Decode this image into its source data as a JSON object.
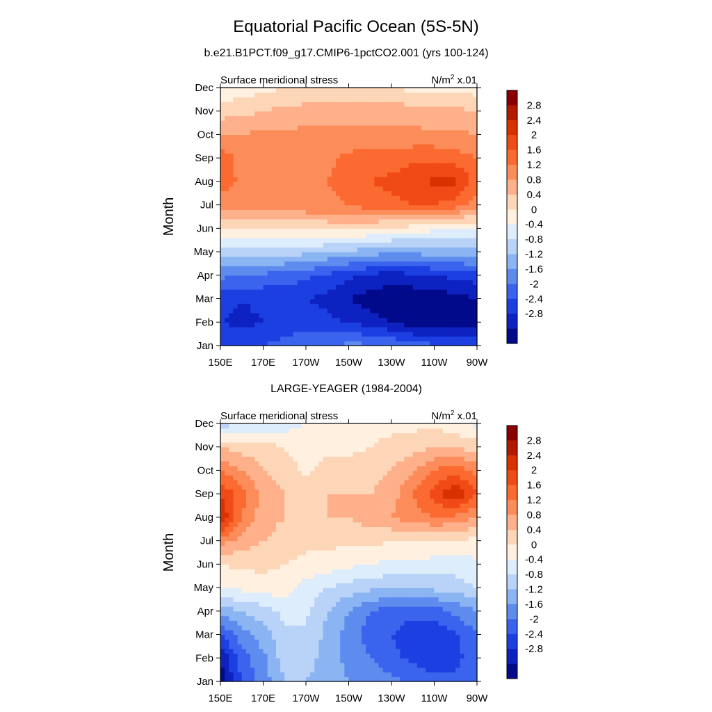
{
  "title": "Equatorial Pacific Ocean (5S-5N)",
  "colorbar": {
    "labels": [
      "2.8",
      "2.4",
      "2",
      "1.6",
      "1.2",
      "0.8",
      "0.4",
      "0",
      "-0.4",
      "-0.8",
      "-1.2",
      "-1.6",
      "-2",
      "-2.4",
      "-2.8"
    ],
    "colors": [
      "#8a0000",
      "#b31a00",
      "#d93100",
      "#f04b16",
      "#fb6a30",
      "#fc8c5a",
      "#fdb08a",
      "#fdd6b8",
      "#fff0e0",
      "#deedfb",
      "#b8d3f7",
      "#8ab4f2",
      "#5e8cee",
      "#3a64ee",
      "#1c3fe2",
      "#0d22c0",
      "#000a8a"
    ],
    "note": ""
  },
  "chart_data": [
    {
      "type": "heatmap",
      "subtitle": "b.e21.B1PCT.f09_g17.CMIP6-1pctCO2.001 (yrs 100-124)",
      "left_label": "Surface meridional stress",
      "right_label": "N/m",
      "right_label_sup": "2",
      "right_label_suffix": " x.01",
      "ylabel": "Month",
      "xlabel": "",
      "x_ticks": [
        "150E",
        "170E",
        "170W",
        "150W",
        "130W",
        "110W",
        "90W"
      ],
      "y_ticks": [
        "Jan",
        "Feb",
        "Mar",
        "Apr",
        "May",
        "Jun",
        "Jul",
        "Aug",
        "Sep",
        "Oct",
        "Nov",
        "Dec"
      ],
      "x_range": [
        150,
        270
      ],
      "y_range": [
        1,
        12
      ],
      "x_grid": [
        150,
        160,
        170,
        180,
        190,
        200,
        210,
        220,
        230,
        240,
        250,
        260,
        270
      ],
      "values": [
        [
          -2.0,
          -2.1,
          -2.0,
          -1.8,
          -1.7,
          -1.6,
          -1.5,
          -1.5,
          -1.6,
          -1.8,
          -1.9,
          -2.0,
          -2.1
        ],
        [
          -2.4,
          -2.5,
          -2.4,
          -2.3,
          -2.2,
          -2.3,
          -2.4,
          -2.6,
          -2.8,
          -3.0,
          -3.0,
          -3.0,
          -2.9
        ],
        [
          -2.2,
          -2.4,
          -2.3,
          -2.3,
          -2.4,
          -2.5,
          -2.8,
          -3.0,
          -3.1,
          -3.1,
          -3.0,
          -3.0,
          -2.8
        ],
        [
          -1.5,
          -1.6,
          -1.7,
          -1.8,
          -1.9,
          -2.1,
          -2.3,
          -2.5,
          -2.6,
          -2.5,
          -2.4,
          -2.3,
          -2.2
        ],
        [
          -0.5,
          -0.5,
          -0.6,
          -0.6,
          -0.7,
          -0.8,
          -0.9,
          -1.0,
          -1.1,
          -1.1,
          -1.0,
          -1.0,
          -0.9
        ],
        [
          0.3,
          0.4,
          0.4,
          0.5,
          0.5,
          0.5,
          0.5,
          0.4,
          0.3,
          0.2,
          0.1,
          0.0,
          0.0
        ],
        [
          1.3,
          1.4,
          1.4,
          1.4,
          1.5,
          1.5,
          1.6,
          1.8,
          1.9,
          2.0,
          2.0,
          1.8,
          1.3
        ],
        [
          1.9,
          1.5,
          1.4,
          1.4,
          1.5,
          1.6,
          1.8,
          2.0,
          2.1,
          2.3,
          2.5,
          2.5,
          1.8
        ],
        [
          1.9,
          1.4,
          1.3,
          1.3,
          1.4,
          1.5,
          1.7,
          1.8,
          1.8,
          1.9,
          1.9,
          1.8,
          1.6
        ],
        [
          1.2,
          1.2,
          1.3,
          1.3,
          1.3,
          1.3,
          1.3,
          1.3,
          1.3,
          1.3,
          1.3,
          1.3,
          1.2
        ],
        [
          0.6,
          0.7,
          0.8,
          0.9,
          1.0,
          1.0,
          1.0,
          1.0,
          1.0,
          1.0,
          0.9,
          0.9,
          0.8
        ],
        [
          0.0,
          0.2,
          0.3,
          0.4,
          0.4,
          0.4,
          0.4,
          0.4,
          0.4,
          0.3,
          0.3,
          0.3,
          0.2
        ]
      ]
    },
    {
      "type": "heatmap",
      "subtitle": "LARGE-YEAGER (1984-2004)",
      "left_label": "Surface meridional stress",
      "right_label": "N/m",
      "right_label_sup": "2",
      "right_label_suffix": " x.01",
      "ylabel": "Month",
      "xlabel": "",
      "x_ticks": [
        "150E",
        "170E",
        "170W",
        "150W",
        "130W",
        "110W",
        "90W"
      ],
      "y_ticks": [
        "Jan",
        "Feb",
        "Mar",
        "Apr",
        "May",
        "Jun",
        "Jul",
        "Aug",
        "Sep",
        "Oct",
        "Nov",
        "Dec"
      ],
      "x_range": [
        150,
        270
      ],
      "y_range": [
        1,
        12
      ],
      "x_grid": [
        150,
        160,
        170,
        180,
        190,
        200,
        210,
        220,
        230,
        240,
        250,
        260,
        270
      ],
      "values": [
        [
          -3.0,
          -2.0,
          -1.4,
          -0.8,
          -0.8,
          -1.0,
          -1.2,
          -1.3,
          -1.5,
          -1.7,
          -1.8,
          -1.9,
          -1.7
        ],
        [
          -2.8,
          -1.8,
          -1.3,
          -0.6,
          -0.6,
          -1.0,
          -1.3,
          -1.6,
          -1.9,
          -2.1,
          -2.3,
          -2.1,
          -1.8
        ],
        [
          -2.0,
          -1.4,
          -1.0,
          -0.5,
          -0.5,
          -0.9,
          -1.4,
          -1.8,
          -2.0,
          -2.2,
          -2.3,
          -2.1,
          -1.6
        ],
        [
          -1.0,
          -0.8,
          -0.6,
          -0.3,
          -0.3,
          -0.8,
          -1.2,
          -1.6,
          -1.8,
          -1.9,
          -1.8,
          -1.5,
          -1.2
        ],
        [
          0.0,
          0.1,
          0.2,
          0.2,
          -0.2,
          -0.4,
          -0.6,
          -0.7,
          -0.8,
          -0.8,
          -0.7,
          -0.6,
          -0.4
        ],
        [
          0.4,
          0.5,
          0.5,
          0.4,
          0.3,
          0.2,
          0.1,
          0.0,
          -0.1,
          -0.1,
          -0.2,
          -0.2,
          -0.1
        ],
        [
          1.4,
          1.0,
          0.8,
          0.6,
          0.5,
          0.5,
          0.5,
          0.5,
          0.4,
          0.4,
          0.4,
          0.3,
          0.3
        ],
        [
          2.8,
          1.6,
          1.0,
          0.8,
          0.6,
          0.8,
          0.8,
          1.0,
          1.2,
          1.4,
          1.6,
          1.5,
          1.2
        ],
        [
          2.4,
          1.8,
          1.0,
          0.8,
          0.6,
          0.8,
          0.8,
          0.8,
          1.0,
          1.6,
          2.2,
          2.8,
          2.0
        ],
        [
          1.6,
          1.2,
          0.8,
          0.6,
          0.3,
          0.6,
          0.6,
          0.6,
          0.8,
          1.2,
          1.6,
          1.9,
          1.4
        ],
        [
          0.8,
          0.6,
          0.6,
          0.4,
          0.2,
          0.3,
          0.3,
          0.4,
          0.5,
          0.6,
          0.8,
          0.8,
          0.6
        ],
        [
          -0.6,
          -0.4,
          -0.3,
          -0.2,
          0.0,
          0.3,
          0.2,
          0.3,
          0.3,
          0.3,
          0.3,
          0.1,
          -0.1
        ]
      ]
    }
  ]
}
